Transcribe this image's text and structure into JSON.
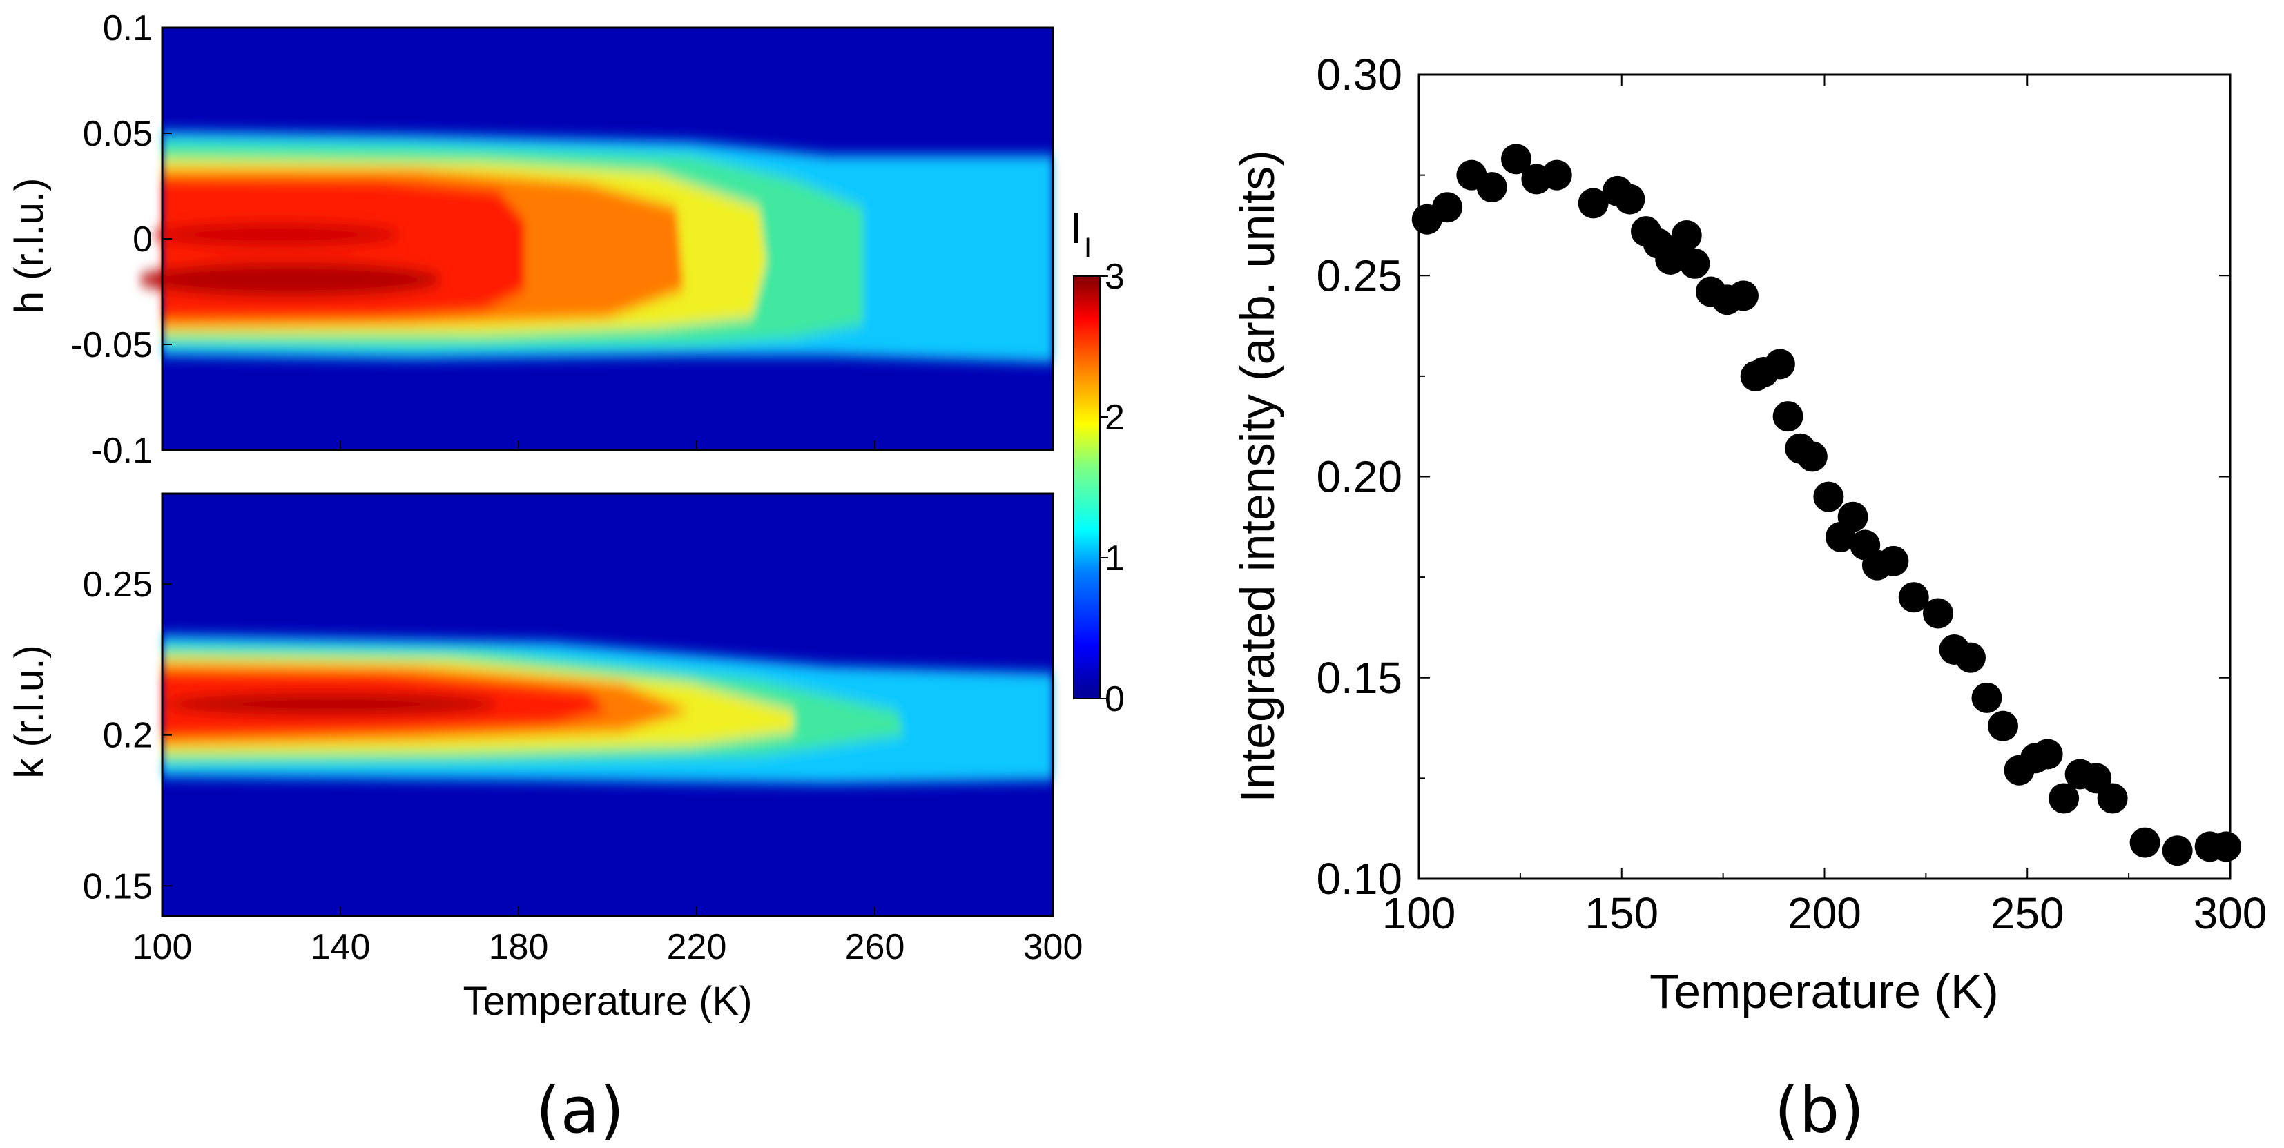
{
  "chart_data": [
    {
      "type": "heatmap",
      "panel_label": "(a)",
      "xlabel": "Temperature (K)",
      "xlim": [
        100,
        300
      ],
      "x_ticks": [
        "100",
        "140",
        "180",
        "220",
        "260",
        "300"
      ],
      "colorbar": {
        "label_main": "I",
        "label_sub": "I",
        "range": [
          0,
          3
        ],
        "ticks": [
          "0",
          "1",
          "2",
          "3"
        ],
        "colormap": [
          "#00008f",
          "#0000ff",
          "#0080ff",
          "#00ffff",
          "#80ff80",
          "#ffff00",
          "#ff8000",
          "#ff0000",
          "#800000"
        ]
      },
      "subplots": [
        {
          "name": "h-map",
          "ylabel": "h (r.l.u.)",
          "ylim": [
            -0.1,
            0.1
          ],
          "y_ticks": [
            "0.1",
            "0.05",
            "0",
            "-0.05",
            "-0.1"
          ],
          "peak_center": -0.008,
          "peak_halfwidth": 0.045,
          "description_points": [
            {
              "T": 100,
              "intensity": 2.9
            },
            {
              "T": 180,
              "intensity": 2.5
            },
            {
              "T": 220,
              "intensity": 2.0
            },
            {
              "T": 240,
              "intensity": 1.5
            },
            {
              "T": 300,
              "intensity": 1.1
            }
          ]
        },
        {
          "name": "k-map",
          "ylabel": "k (r.l.u.)",
          "ylim": [
            0.14,
            0.28
          ],
          "y_ticks": [
            "0.25",
            "0.2",
            "0.15"
          ],
          "peak_center": 0.208,
          "peak_halfwidth": 0.015,
          "description_points": [
            {
              "T": 100,
              "intensity": 2.9
            },
            {
              "T": 200,
              "intensity": 2.6
            },
            {
              "T": 240,
              "intensity": 2.0
            },
            {
              "T": 265,
              "intensity": 1.6
            },
            {
              "T": 300,
              "intensity": 1.3
            }
          ]
        }
      ]
    },
    {
      "type": "scatter",
      "panel_label": "(b)",
      "xlabel": "Temperature (K)",
      "ylabel": "Integrated intensity (arb. units)",
      "xlim": [
        100,
        300
      ],
      "ylim": [
        0.1,
        0.3
      ],
      "x_ticks": [
        "100",
        "150",
        "200",
        "250",
        "300"
      ],
      "y_ticks": [
        "0.30",
        "0.25",
        "0.20",
        "0.15",
        "0.10"
      ],
      "marker_color": "#000000",
      "x": [
        102,
        107,
        113,
        118,
        124,
        129,
        134,
        143,
        149,
        152,
        156,
        159,
        162,
        164,
        166,
        168,
        172,
        176,
        180,
        183,
        185,
        189,
        191,
        194,
        197,
        201,
        204,
        207,
        210,
        213,
        217,
        222,
        228,
        232,
        236,
        240,
        244,
        248,
        252,
        255,
        259,
        263,
        267,
        271,
        279,
        287,
        295,
        299
      ],
      "y": [
        0.264,
        0.267,
        0.275,
        0.272,
        0.279,
        0.274,
        0.275,
        0.268,
        0.271,
        0.269,
        0.261,
        0.258,
        0.254,
        0.256,
        0.26,
        0.253,
        0.246,
        0.244,
        0.245,
        0.225,
        0.226,
        0.228,
        0.215,
        0.207,
        0.205,
        0.195,
        0.185,
        0.19,
        0.183,
        0.178,
        0.179,
        0.17,
        0.166,
        0.157,
        0.155,
        0.145,
        0.138,
        0.127,
        0.13,
        0.131,
        0.12,
        0.126,
        0.125,
        0.12,
        0.109,
        0.107,
        0.108,
        0.108
      ]
    }
  ]
}
